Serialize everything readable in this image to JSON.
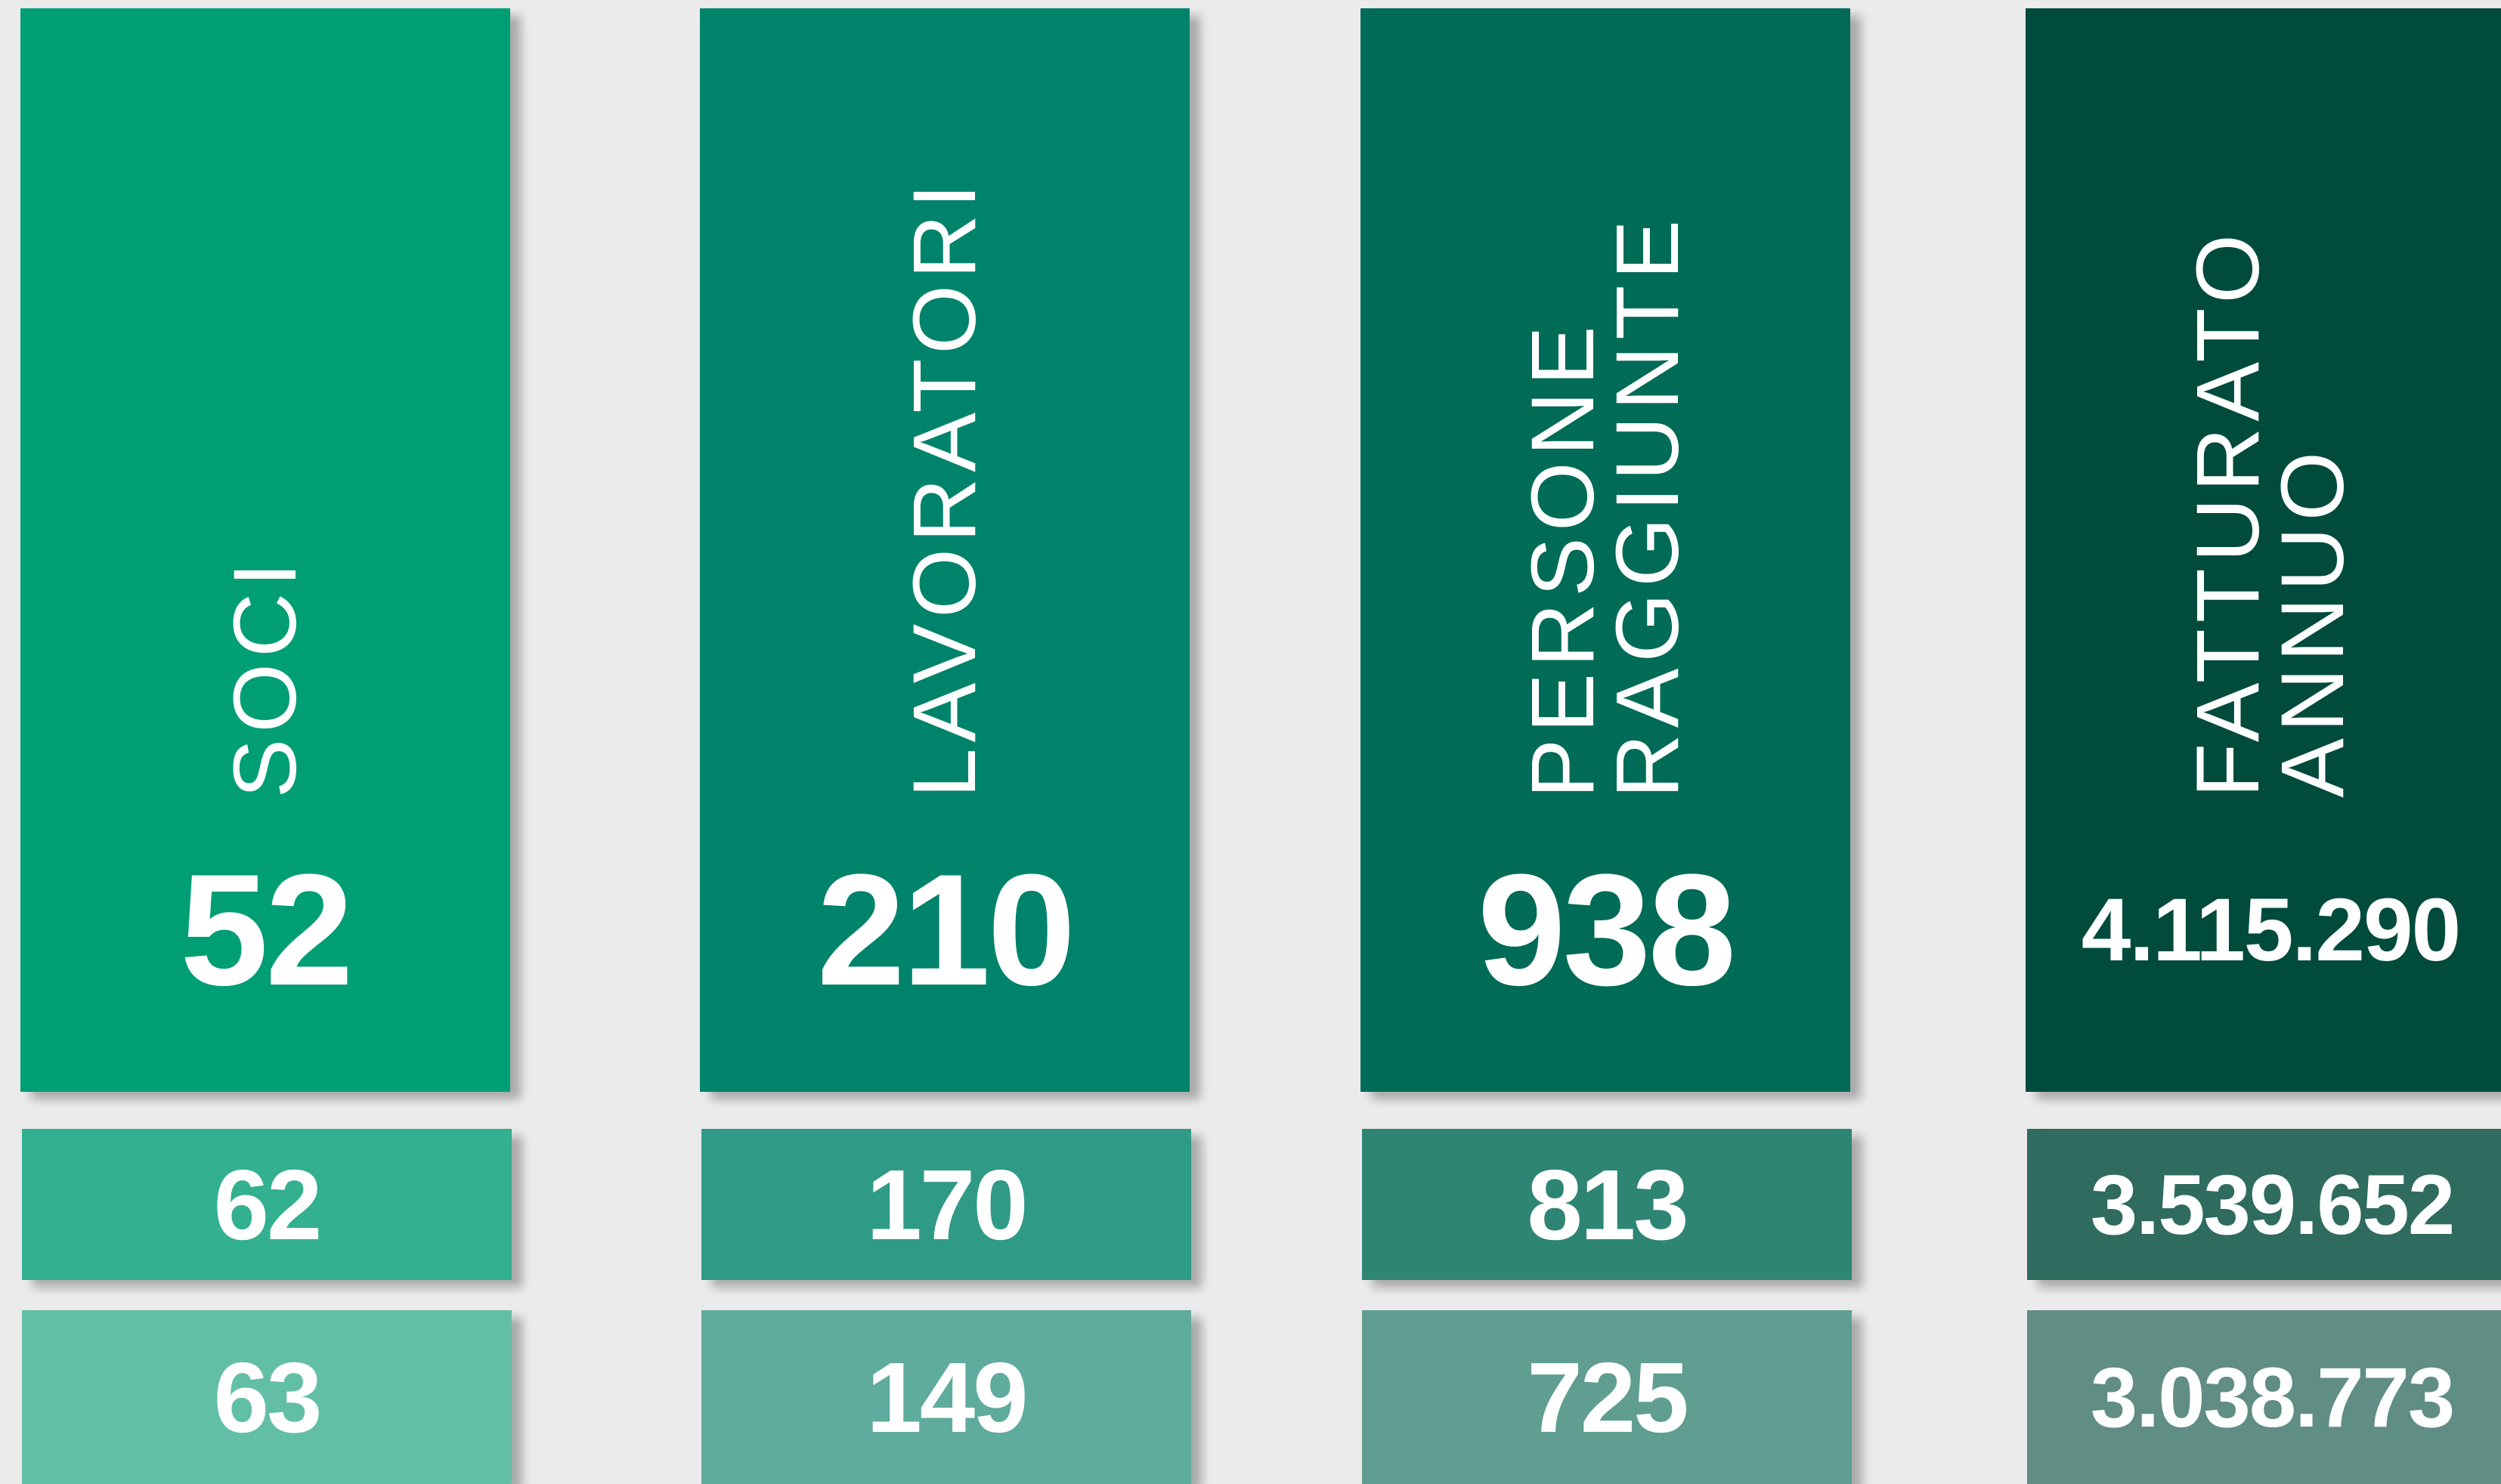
{
  "columns": [
    {
      "label": [
        "SOCI"
      ],
      "value": "52",
      "history": [
        "62",
        "63"
      ]
    },
    {
      "label": [
        "LAVORATORI"
      ],
      "value": "210",
      "history": [
        "170",
        "149"
      ]
    },
    {
      "label": [
        "PERSONE",
        "RAGGIUNTE"
      ],
      "value": "938",
      "history": [
        "813",
        "725"
      ]
    },
    {
      "label": [
        "FATTURATO",
        "ANNUO"
      ],
      "value": "4.115.290",
      "history": [
        "3.539.652",
        "3.038.773"
      ]
    }
  ]
}
